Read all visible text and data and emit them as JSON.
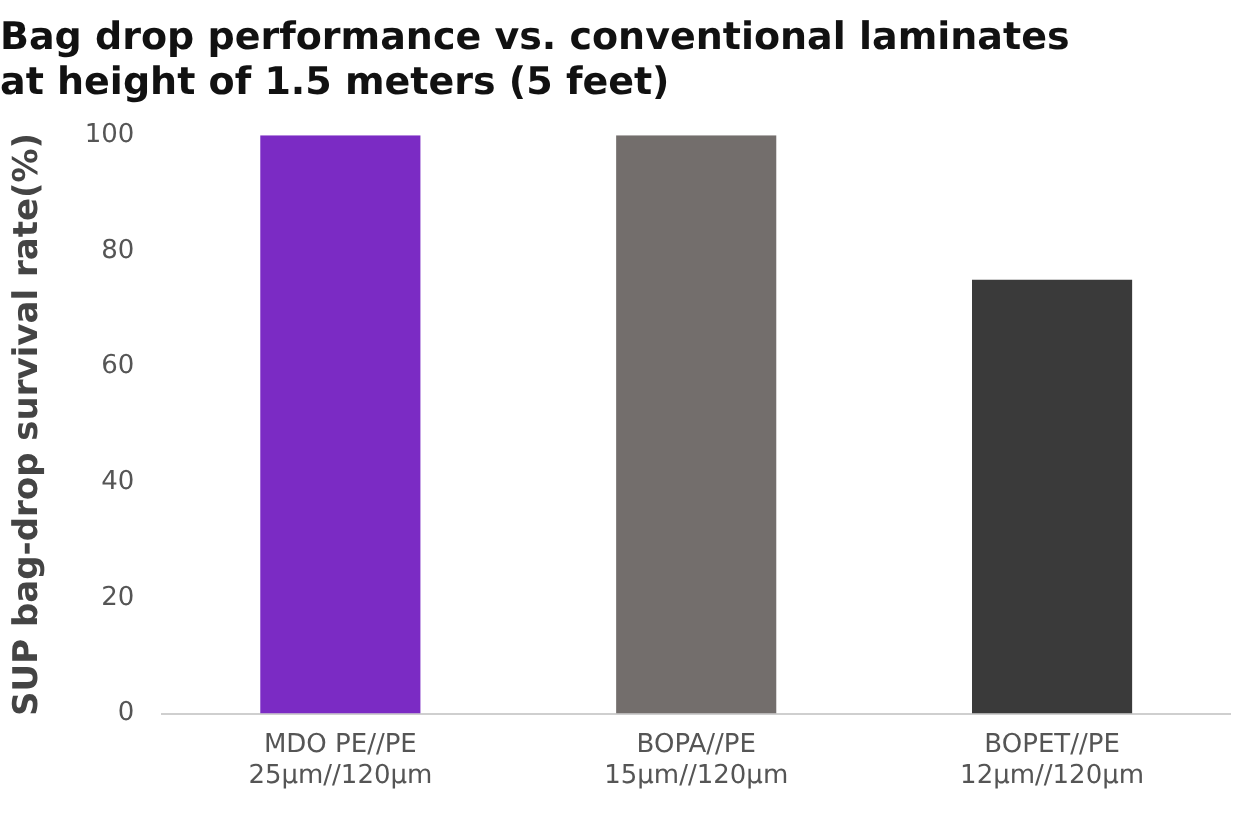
{
  "chart_data": {
    "type": "bar",
    "title": "Bag drop performance vs. conventional laminates\nat height of 1.5 meters (5 feet)",
    "ylabel": "SUP bag-drop survival rate(%)",
    "categories": [
      "MDO PE//PE\n25µm//120µm",
      "BOPA//PE\n15µm//120µm",
      "BOPET//PE\n12µm//120µm"
    ],
    "values": [
      100,
      100,
      75
    ],
    "colors": [
      "#7b2bc4",
      "#736e6c",
      "#3a3a3a"
    ],
    "ylim": [
      0,
      100
    ],
    "yticks": [
      0,
      20,
      40,
      60,
      80,
      100
    ],
    "grid": false,
    "legend": false
  }
}
